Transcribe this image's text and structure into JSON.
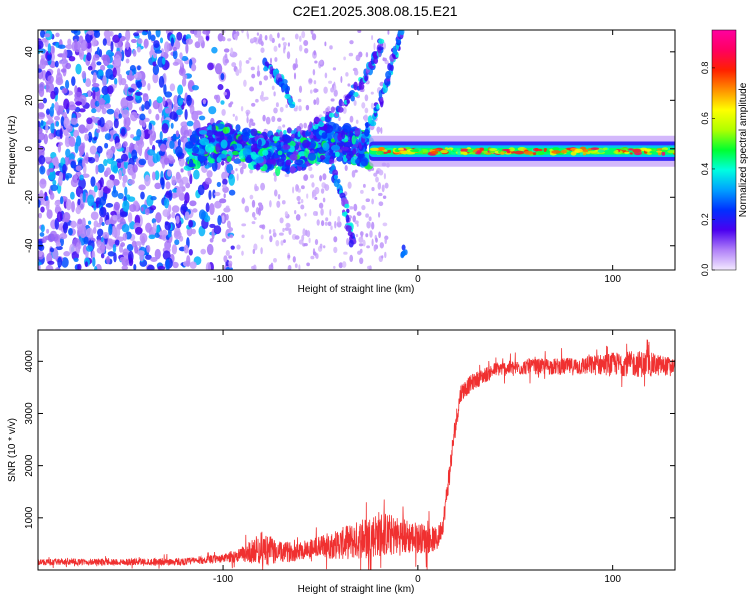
{
  "title": "C2E1.2025.308.08.15.E21",
  "colors": {
    "snr_line": "#f03030",
    "axis": "#000000",
    "spec_low": "#d8c8ff",
    "spec_mid": "#6a10f0",
    "spec_high": "#ff1e1e"
  },
  "chart_data": [
    {
      "type": "heatmap",
      "id": "spectrogram",
      "title": "",
      "xlabel": "Height of straight line (km)",
      "ylabel": "Frequency (Hz)",
      "xlim": [
        -195,
        132
      ],
      "ylim": [
        -50,
        49
      ],
      "xticks": [
        -100,
        0,
        100
      ],
      "xtick_labels": [
        "-100",
        "0",
        "100"
      ],
      "yticks": [
        -40,
        -20,
        0,
        20,
        40
      ],
      "ytick_labels": [
        "-40",
        "-20",
        "0",
        "20",
        "40"
      ],
      "grid": false,
      "main_band": {
        "x_start": -25,
        "x_end": 132,
        "center_hz": -1,
        "half_width_hz": 4,
        "amplitude": 0.9
      },
      "turbulent_band": {
        "x_start": -118,
        "x_end": -25,
        "center_hz": 0,
        "amplitude": 0.3
      },
      "noise_region": {
        "x_start": -195,
        "x_end": -100,
        "amplitude": 0.2
      },
      "tracks": [
        {
          "name": "upper-track",
          "points": [
            [
              -30,
              0
            ],
            [
              -20,
              18
            ],
            [
              -12,
              38
            ],
            [
              -8,
              49
            ]
          ]
        },
        {
          "name": "mid-track",
          "points": [
            [
              -75,
              5
            ],
            [
              -55,
              8
            ],
            [
              -38,
              18
            ],
            [
              -25,
              32
            ],
            [
              -18,
              45
            ]
          ]
        },
        {
          "name": "lower-track",
          "points": [
            [
              -45,
              -5
            ],
            [
              -38,
              -22
            ],
            [
              -33,
              -40
            ]
          ]
        },
        {
          "name": "high-arc",
          "points": [
            [
              -78,
              35
            ],
            [
              -70,
              28
            ],
            [
              -64,
              18
            ]
          ]
        },
        {
          "name": "spot",
          "points": [
            [
              -7,
              -42
            ]
          ]
        }
      ]
    },
    {
      "type": "colorbar",
      "id": "colorbar",
      "label": "Normalized spectral amplitude",
      "range": [
        0.0,
        0.95
      ],
      "ticks": [
        0.0,
        0.2,
        0.4,
        0.6,
        0.8
      ],
      "tick_labels": [
        "0.0",
        "0.2",
        "0.4",
        "0.6",
        "0.8"
      ],
      "colors": [
        "#f4eaff",
        "#b080f8",
        "#4a00f0",
        "#0030ff",
        "#00a0ff",
        "#00ffe0",
        "#00ff30",
        "#b0ff00",
        "#ffff00",
        "#ff9000",
        "#ff2000",
        "#ff0060",
        "#ff00a0"
      ]
    },
    {
      "type": "line",
      "id": "snr",
      "title": "",
      "xlabel": "Height of straight line (km)",
      "ylabel": "SNR (10 * v/v)",
      "xlim": [
        -195,
        132
      ],
      "ylim": [
        0,
        4600
      ],
      "xticks": [
        -100,
        0,
        100
      ],
      "xtick_labels": [
        "-100",
        "0",
        "100"
      ],
      "yticks": [
        1000,
        2000,
        3000,
        4000
      ],
      "ytick_labels": [
        "1000",
        "2000",
        "3000",
        "4000"
      ],
      "grid": false,
      "series": [
        {
          "name": "SNR",
          "envelope": [
            {
              "x": -195,
              "base": 150,
              "noise": 60
            },
            {
              "x": -120,
              "base": 160,
              "noise": 70
            },
            {
              "x": -100,
              "base": 220,
              "noise": 80
            },
            {
              "x": -90,
              "base": 300,
              "noise": 150
            },
            {
              "x": -80,
              "base": 420,
              "noise": 320
            },
            {
              "x": -70,
              "base": 330,
              "noise": 200
            },
            {
              "x": -60,
              "base": 380,
              "noise": 180
            },
            {
              "x": -50,
              "base": 450,
              "noise": 220
            },
            {
              "x": -40,
              "base": 500,
              "noise": 300
            },
            {
              "x": -30,
              "base": 580,
              "noise": 380
            },
            {
              "x": -20,
              "base": 700,
              "noise": 450
            },
            {
              "x": -10,
              "base": 650,
              "noise": 380
            },
            {
              "x": 0,
              "base": 620,
              "noise": 300
            },
            {
              "x": 5,
              "base": 600,
              "noise": 280
            },
            {
              "x": 10,
              "base": 580,
              "noise": 220
            },
            {
              "x": 13,
              "base": 900,
              "noise": 200
            },
            {
              "x": 16,
              "base": 1800,
              "noise": 250
            },
            {
              "x": 19,
              "base": 2700,
              "noise": 220
            },
            {
              "x": 22,
              "base": 3400,
              "noise": 180
            },
            {
              "x": 28,
              "base": 3600,
              "noise": 160
            },
            {
              "x": 40,
              "base": 3850,
              "noise": 140
            },
            {
              "x": 60,
              "base": 3900,
              "noise": 150
            },
            {
              "x": 80,
              "base": 3900,
              "noise": 170
            },
            {
              "x": 100,
              "base": 3950,
              "noise": 220
            },
            {
              "x": 115,
              "base": 3950,
              "noise": 260
            },
            {
              "x": 132,
              "base": 3900,
              "noise": 160
            }
          ]
        }
      ]
    }
  ]
}
